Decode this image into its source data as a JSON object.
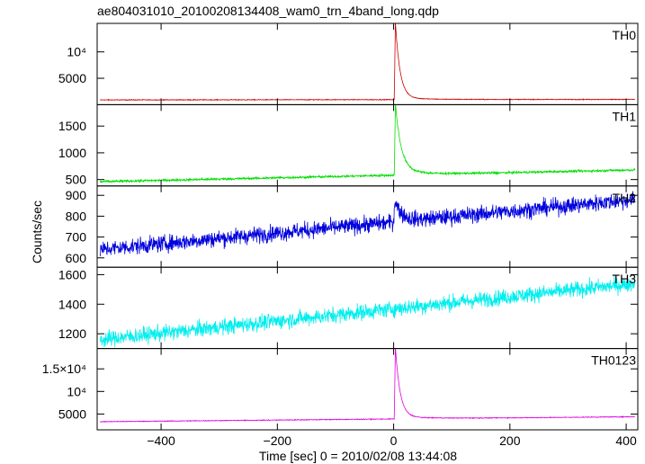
{
  "chart_data": {
    "type": "line",
    "title": "ae804031010_20100208134408_wam0_trn_4band_long.qdp",
    "xlabel": "Time [sec] 0 = 2010/02/08 13:44:08",
    "ylabel": "Counts/sec",
    "xlim": [
      -510,
      420
    ],
    "x_ticks": [
      {
        "value": -400,
        "label": "−400"
      },
      {
        "value": -200,
        "label": "−200"
      },
      {
        "value": 0,
        "label": "0"
      },
      {
        "value": 200,
        "label": "200"
      },
      {
        "value": 400,
        "label": "400"
      }
    ],
    "panels": [
      {
        "label": "TH0",
        "color": "#cc0000",
        "ylim": [
          0,
          15400
        ],
        "y_ticks": [
          {
            "value": 5000,
            "label": "5000"
          },
          {
            "value": 10000,
            "label": "10⁴"
          }
        ],
        "series": {
          "baseline_start": 900,
          "baseline_end": 1000,
          "noise": 50,
          "peak": 15400,
          "peak_time": 3,
          "rise_time": 2,
          "decay_time": 8,
          "tail_level": 300,
          "tail_decay": 60
        }
      },
      {
        "label": "TH1",
        "color": "#00dd00",
        "ylim": [
          380,
          1900
        ],
        "y_ticks": [
          {
            "value": 500,
            "label": "500"
          },
          {
            "value": 1000,
            "label": "1000"
          },
          {
            "value": 1500,
            "label": "1500"
          }
        ],
        "series": {
          "baseline_start": 460,
          "baseline_end": 680,
          "noise": 15,
          "peak": 1850,
          "peak_time": 3,
          "rise_time": 2,
          "decay_time": 10,
          "tail_level": 80,
          "tail_decay": 50
        }
      },
      {
        "label": "TH2",
        "color": "#0000dd",
        "ylim": [
          555,
          945
        ],
        "y_ticks": [
          {
            "value": 600,
            "label": "600"
          },
          {
            "value": 700,
            "label": "700"
          },
          {
            "value": 800,
            "label": "800"
          },
          {
            "value": 900,
            "label": "900"
          }
        ],
        "series": {
          "baseline_start": 640,
          "baseline_end": 880,
          "noise": 28,
          "peak": 880,
          "peak_time": 2,
          "rise_time": 2,
          "decay_time": 12,
          "tail_level": 0,
          "tail_decay": 10
        }
      },
      {
        "label": "TH3",
        "color": "#00eeee",
        "ylim": [
          1100,
          1650
        ],
        "y_ticks": [
          {
            "value": 1200,
            "label": "1200"
          },
          {
            "value": 1400,
            "label": "1400"
          },
          {
            "value": 1600,
            "label": "1600"
          }
        ],
        "series": {
          "baseline_start": 1160,
          "baseline_end": 1540,
          "noise": 38,
          "peak": 0,
          "peak_time": 0,
          "rise_time": 1,
          "decay_time": 1,
          "tail_level": 0,
          "tail_decay": 1
        }
      },
      {
        "label": "TH0123",
        "color": "#dd00dd",
        "ylim": [
          1500,
          19500
        ],
        "y_ticks": [
          {
            "value": 5000,
            "label": "5000"
          },
          {
            "value": 10000,
            "label": "10⁴"
          },
          {
            "value": 15000,
            "label": "1.5×10⁴"
          }
        ],
        "series": {
          "baseline_start": 3300,
          "baseline_end": 4400,
          "noise": 60,
          "peak": 19500,
          "peak_time": 3,
          "rise_time": 2,
          "decay_time": 8,
          "tail_level": 500,
          "tail_decay": 60
        }
      }
    ]
  }
}
